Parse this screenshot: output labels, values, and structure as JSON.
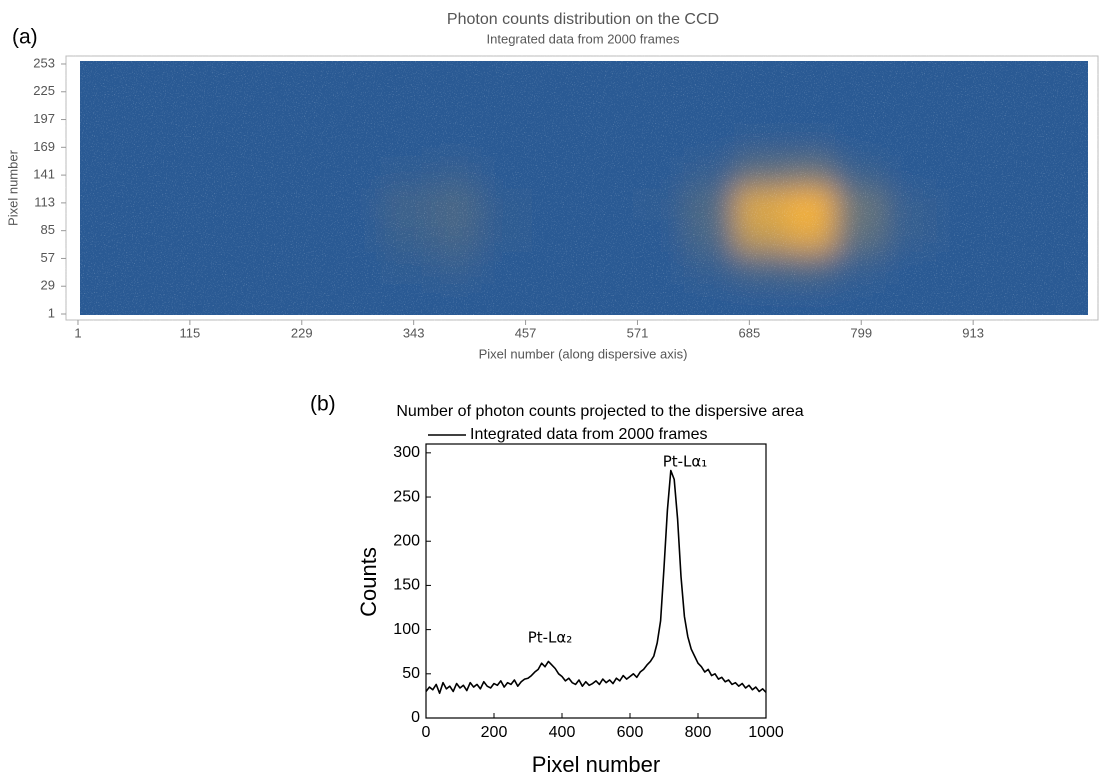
{
  "chart_data": [
    {
      "type": "heatmap",
      "panel": "(a)",
      "title": "Photon counts distribution on the CCD",
      "subtitle": "Integrated data from 2000 frames",
      "xlabel": "Pixel number (along dispersive axis)",
      "ylabel": "Pixel number",
      "xlim": [
        0,
        1030
      ],
      "ylim": [
        0,
        256
      ],
      "xticks": [
        1,
        115,
        229,
        343,
        457,
        571,
        685,
        799,
        913
      ],
      "yticks": [
        1,
        29,
        57,
        85,
        113,
        141,
        169,
        197,
        225,
        253
      ],
      "colors": [
        "#2a5a94",
        "#f7b23b"
      ],
      "z": [
        [
          1,
          1,
          1,
          1,
          1,
          1,
          1,
          1,
          1,
          1,
          1,
          1,
          1,
          1,
          1,
          1,
          1,
          1,
          1,
          1
        ],
        [
          1,
          1,
          1,
          1,
          1,
          1,
          1.1,
          1.2,
          1,
          1,
          1,
          1,
          1.2,
          1.6,
          1.7,
          1.2,
          1,
          1,
          1,
          1
        ],
        [
          1,
          1,
          1,
          1,
          1,
          1,
          1.3,
          1.5,
          1.1,
          1,
          1,
          1,
          1.6,
          4,
          4.6,
          2,
          1.2,
          1,
          1,
          1
        ],
        [
          1,
          1,
          1,
          1,
          1,
          1,
          1.4,
          1.6,
          1.1,
          1,
          1,
          1.1,
          1.7,
          4.5,
          5,
          2.2,
          1.2,
          1,
          1,
          1
        ],
        [
          1,
          1,
          1,
          1,
          1,
          1,
          1.1,
          1.2,
          1,
          1,
          1,
          1,
          1.2,
          2,
          2.2,
          1.3,
          1,
          1,
          1,
          1
        ],
        [
          1,
          1,
          1,
          1,
          1,
          1,
          1,
          1,
          1,
          1,
          1,
          1,
          1,
          1.1,
          1.1,
          1,
          1,
          1,
          1,
          1
        ],
        [
          1,
          1,
          1,
          1,
          1,
          1,
          1,
          1,
          1,
          1,
          1,
          1,
          1,
          1,
          1,
          1,
          1,
          1,
          1,
          1
        ],
        [
          1,
          1,
          1,
          1,
          1,
          1,
          1,
          1,
          1,
          1,
          1,
          1,
          1,
          1,
          1,
          1,
          1,
          1,
          1,
          1
        ]
      ]
    },
    {
      "type": "line",
      "panel": "(b)",
      "title": "Number of photon counts projected to the dispersive area",
      "xlabel": "Pixel number",
      "ylabel": "Counts",
      "xlim": [
        0,
        1000
      ],
      "ylim": [
        0,
        310
      ],
      "xticks": [
        0,
        200,
        400,
        600,
        800,
        1000
      ],
      "yticks": [
        0,
        50,
        100,
        150,
        200,
        250,
        300
      ],
      "annotations": [
        "Pt-Lα₁",
        "Pt-Lα₂"
      ],
      "x": [
        0,
        10,
        20,
        30,
        40,
        50,
        60,
        70,
        80,
        90,
        100,
        110,
        120,
        130,
        140,
        150,
        160,
        170,
        180,
        190,
        200,
        210,
        220,
        230,
        240,
        250,
        260,
        270,
        280,
        290,
        300,
        310,
        320,
        330,
        340,
        350,
        360,
        370,
        380,
        390,
        400,
        410,
        420,
        430,
        440,
        450,
        460,
        470,
        480,
        490,
        500,
        510,
        520,
        530,
        540,
        550,
        560,
        570,
        580,
        590,
        600,
        610,
        620,
        630,
        640,
        650,
        660,
        670,
        680,
        690,
        700,
        710,
        720,
        730,
        740,
        750,
        760,
        770,
        780,
        790,
        800,
        810,
        820,
        830,
        840,
        850,
        860,
        870,
        880,
        890,
        900,
        910,
        920,
        930,
        940,
        950,
        960,
        970,
        980,
        990,
        1000
      ],
      "series": [
        {
          "name": "Integrated data from 2000 frames",
          "color": "#000000",
          "values": [
            30,
            35,
            32,
            38,
            28,
            40,
            33,
            36,
            30,
            39,
            34,
            37,
            31,
            40,
            35,
            38,
            33,
            41,
            36,
            34,
            39,
            37,
            42,
            35,
            40,
            38,
            43,
            36,
            41,
            44,
            45,
            48,
            52,
            55,
            62,
            58,
            64,
            60,
            56,
            50,
            47,
            42,
            45,
            40,
            38,
            43,
            36,
            41,
            37,
            39,
            42,
            38,
            44,
            40,
            43,
            39,
            45,
            42,
            48,
            44,
            47,
            50,
            46,
            52,
            55,
            60,
            64,
            70,
            85,
            110,
            170,
            235,
            280,
            270,
            225,
            160,
            115,
            92,
            78,
            70,
            62,
            58,
            52,
            55,
            48,
            50,
            44,
            46,
            41,
            43,
            38,
            40,
            36,
            39,
            34,
            37,
            32,
            35,
            30,
            33,
            29
          ]
        }
      ]
    }
  ]
}
